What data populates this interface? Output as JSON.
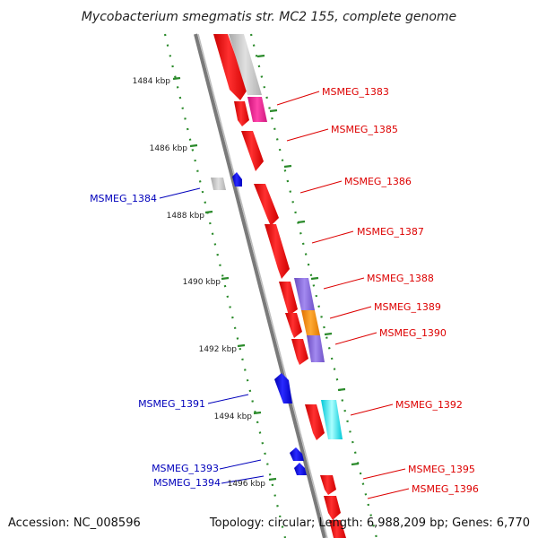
{
  "title": "Mycobacterium smegmatis str. MC2 155, complete genome",
  "footer": {
    "accession": "Accession: NC_008596",
    "summary": "Topology: circular; Length: 6,988,209 bp; Genes: 6,770"
  },
  "colors": {
    "forward_gene": "#ee1111",
    "reverse_gene": "#1111dd",
    "backbone": "#888888",
    "tick": "#2a8a2a",
    "label_forward": "#dd0000",
    "label_reverse": "#0000bb"
  },
  "kbp_ticks": [
    "1484 kbp",
    "1486 kbp",
    "1488 kbp",
    "1490 kbp",
    "1492 kbp",
    "1494 kbp",
    "1496 kbp"
  ],
  "forward_labels": [
    "MSMEG_1383",
    "MSMEG_1385",
    "MSMEG_1386",
    "MSMEG_1387",
    "MSMEG_1388",
    "MSMEG_1389",
    "MSMEG_1390",
    "MSMEG_1392",
    "MSMEG_1395",
    "MSMEG_1396"
  ],
  "reverse_labels": [
    "MSMEG_1384",
    "MSMEG_1391",
    "MSMEG_1393",
    "MSMEG_1394"
  ]
}
